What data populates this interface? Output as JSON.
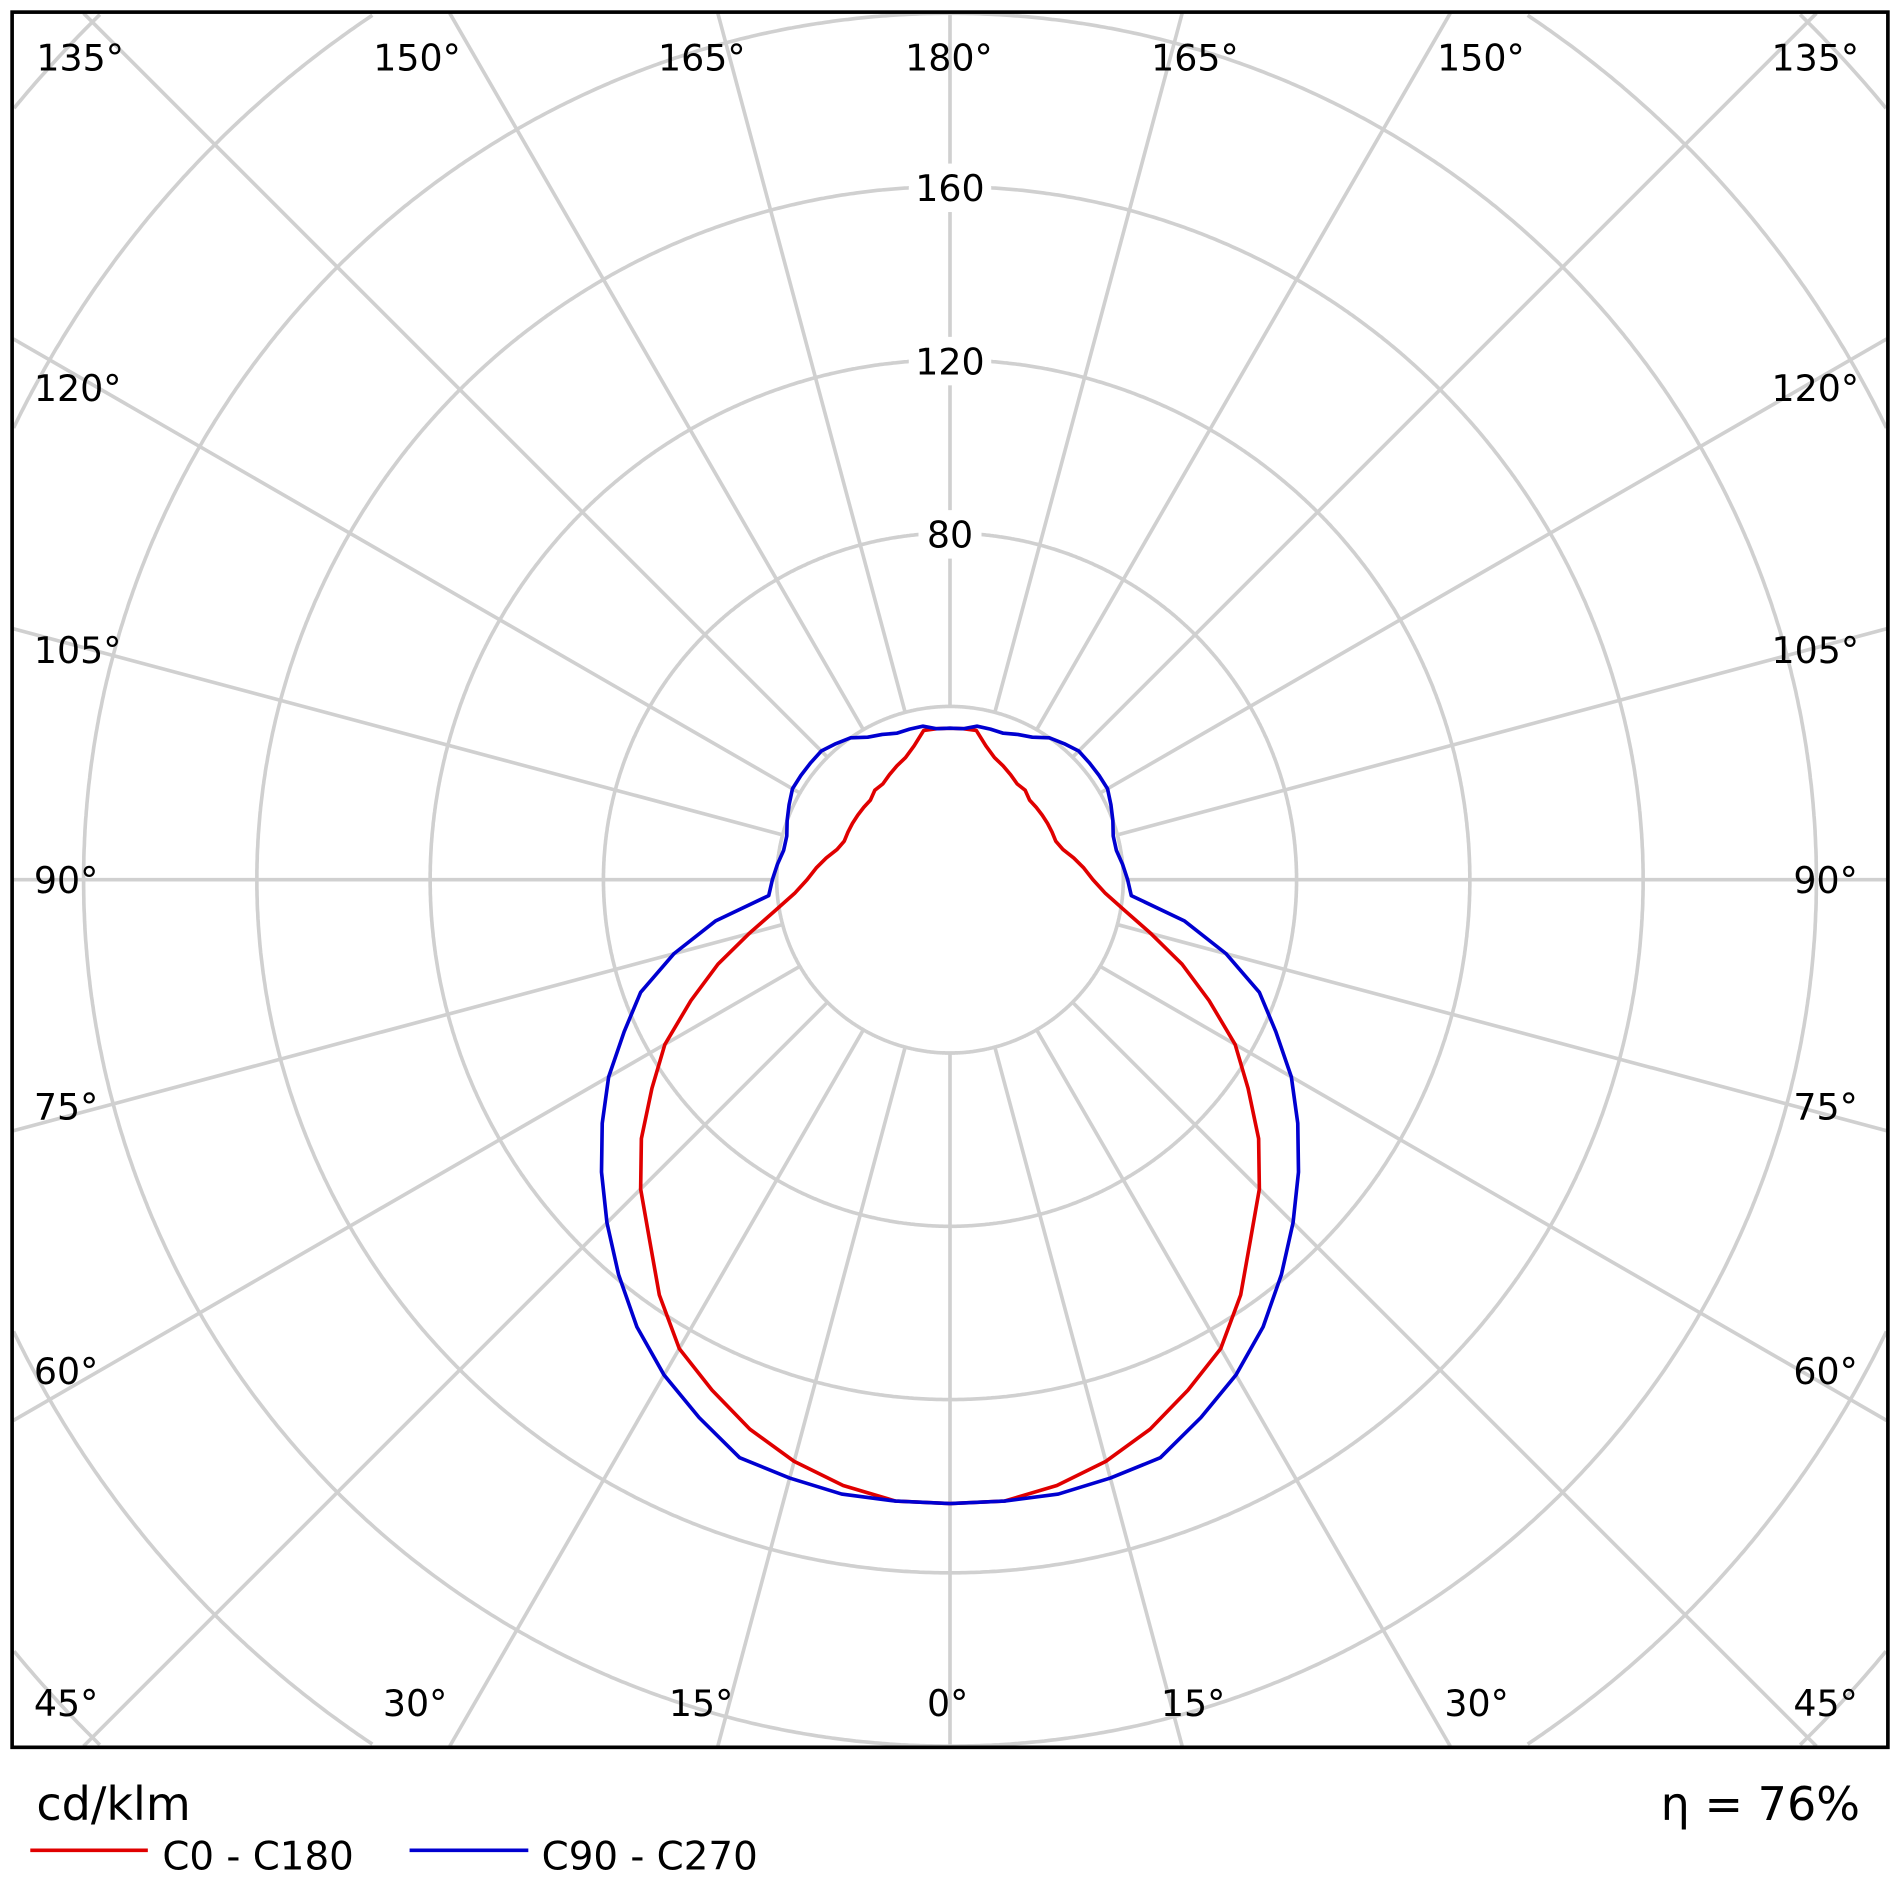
{
  "chart_data": {
    "type": "polar-line",
    "unit_label": "cd/klm",
    "efficiency_label": "η = 76%",
    "radial_ticks": [
      40,
      80,
      120,
      160,
      200,
      240,
      280
    ],
    "radial_tick_labels": [
      "160",
      "120",
      "80"
    ],
    "angle_labels": {
      "top": [
        "135°",
        "150°",
        "165°",
        "180°",
        "165°",
        "150°",
        "135°"
      ],
      "left": [
        "120°",
        "105°",
        "90°",
        "75°",
        "60°"
      ],
      "right": [
        "120°",
        "105°",
        "90°",
        "75°",
        "60°"
      ],
      "bottom": [
        "45°",
        "30°",
        "15°",
        "0°",
        "15°",
        "30°",
        "45°"
      ]
    },
    "angles_deg": [
      0,
      5,
      10,
      15,
      20,
      25,
      30,
      35,
      40,
      45,
      50,
      55,
      60,
      65,
      70,
      75,
      80,
      85,
      90,
      95,
      100,
      105,
      110,
      115,
      120,
      125,
      130,
      135,
      140,
      145,
      150,
      155,
      160,
      165,
      170,
      175,
      180
    ],
    "series": [
      {
        "name": "C0 - C180",
        "color": "#e00000",
        "values": [
          144,
          144,
          142,
          139,
          135,
          130,
          125,
          117,
          108,
          101,
          93,
          84,
          76,
          66,
          57,
          48,
          41,
          36,
          33,
          31,
          29,
          27,
          26,
          26,
          26,
          26,
          26,
          26,
          27,
          27,
          28,
          29,
          30,
          32,
          35,
          35,
          35
        ]
      },
      {
        "name": "C90 - C270",
        "color": "#0000d0",
        "values": [
          144,
          144,
          144,
          143,
          142,
          137,
          132,
          126,
          119,
          112,
          105,
          98,
          91,
          83,
          76,
          66,
          55,
          42,
          41,
          40,
          39,
          39,
          40,
          41,
          42,
          42,
          42,
          42,
          41,
          40,
          38,
          37,
          36,
          36,
          36,
          35,
          35
        ]
      }
    ]
  }
}
